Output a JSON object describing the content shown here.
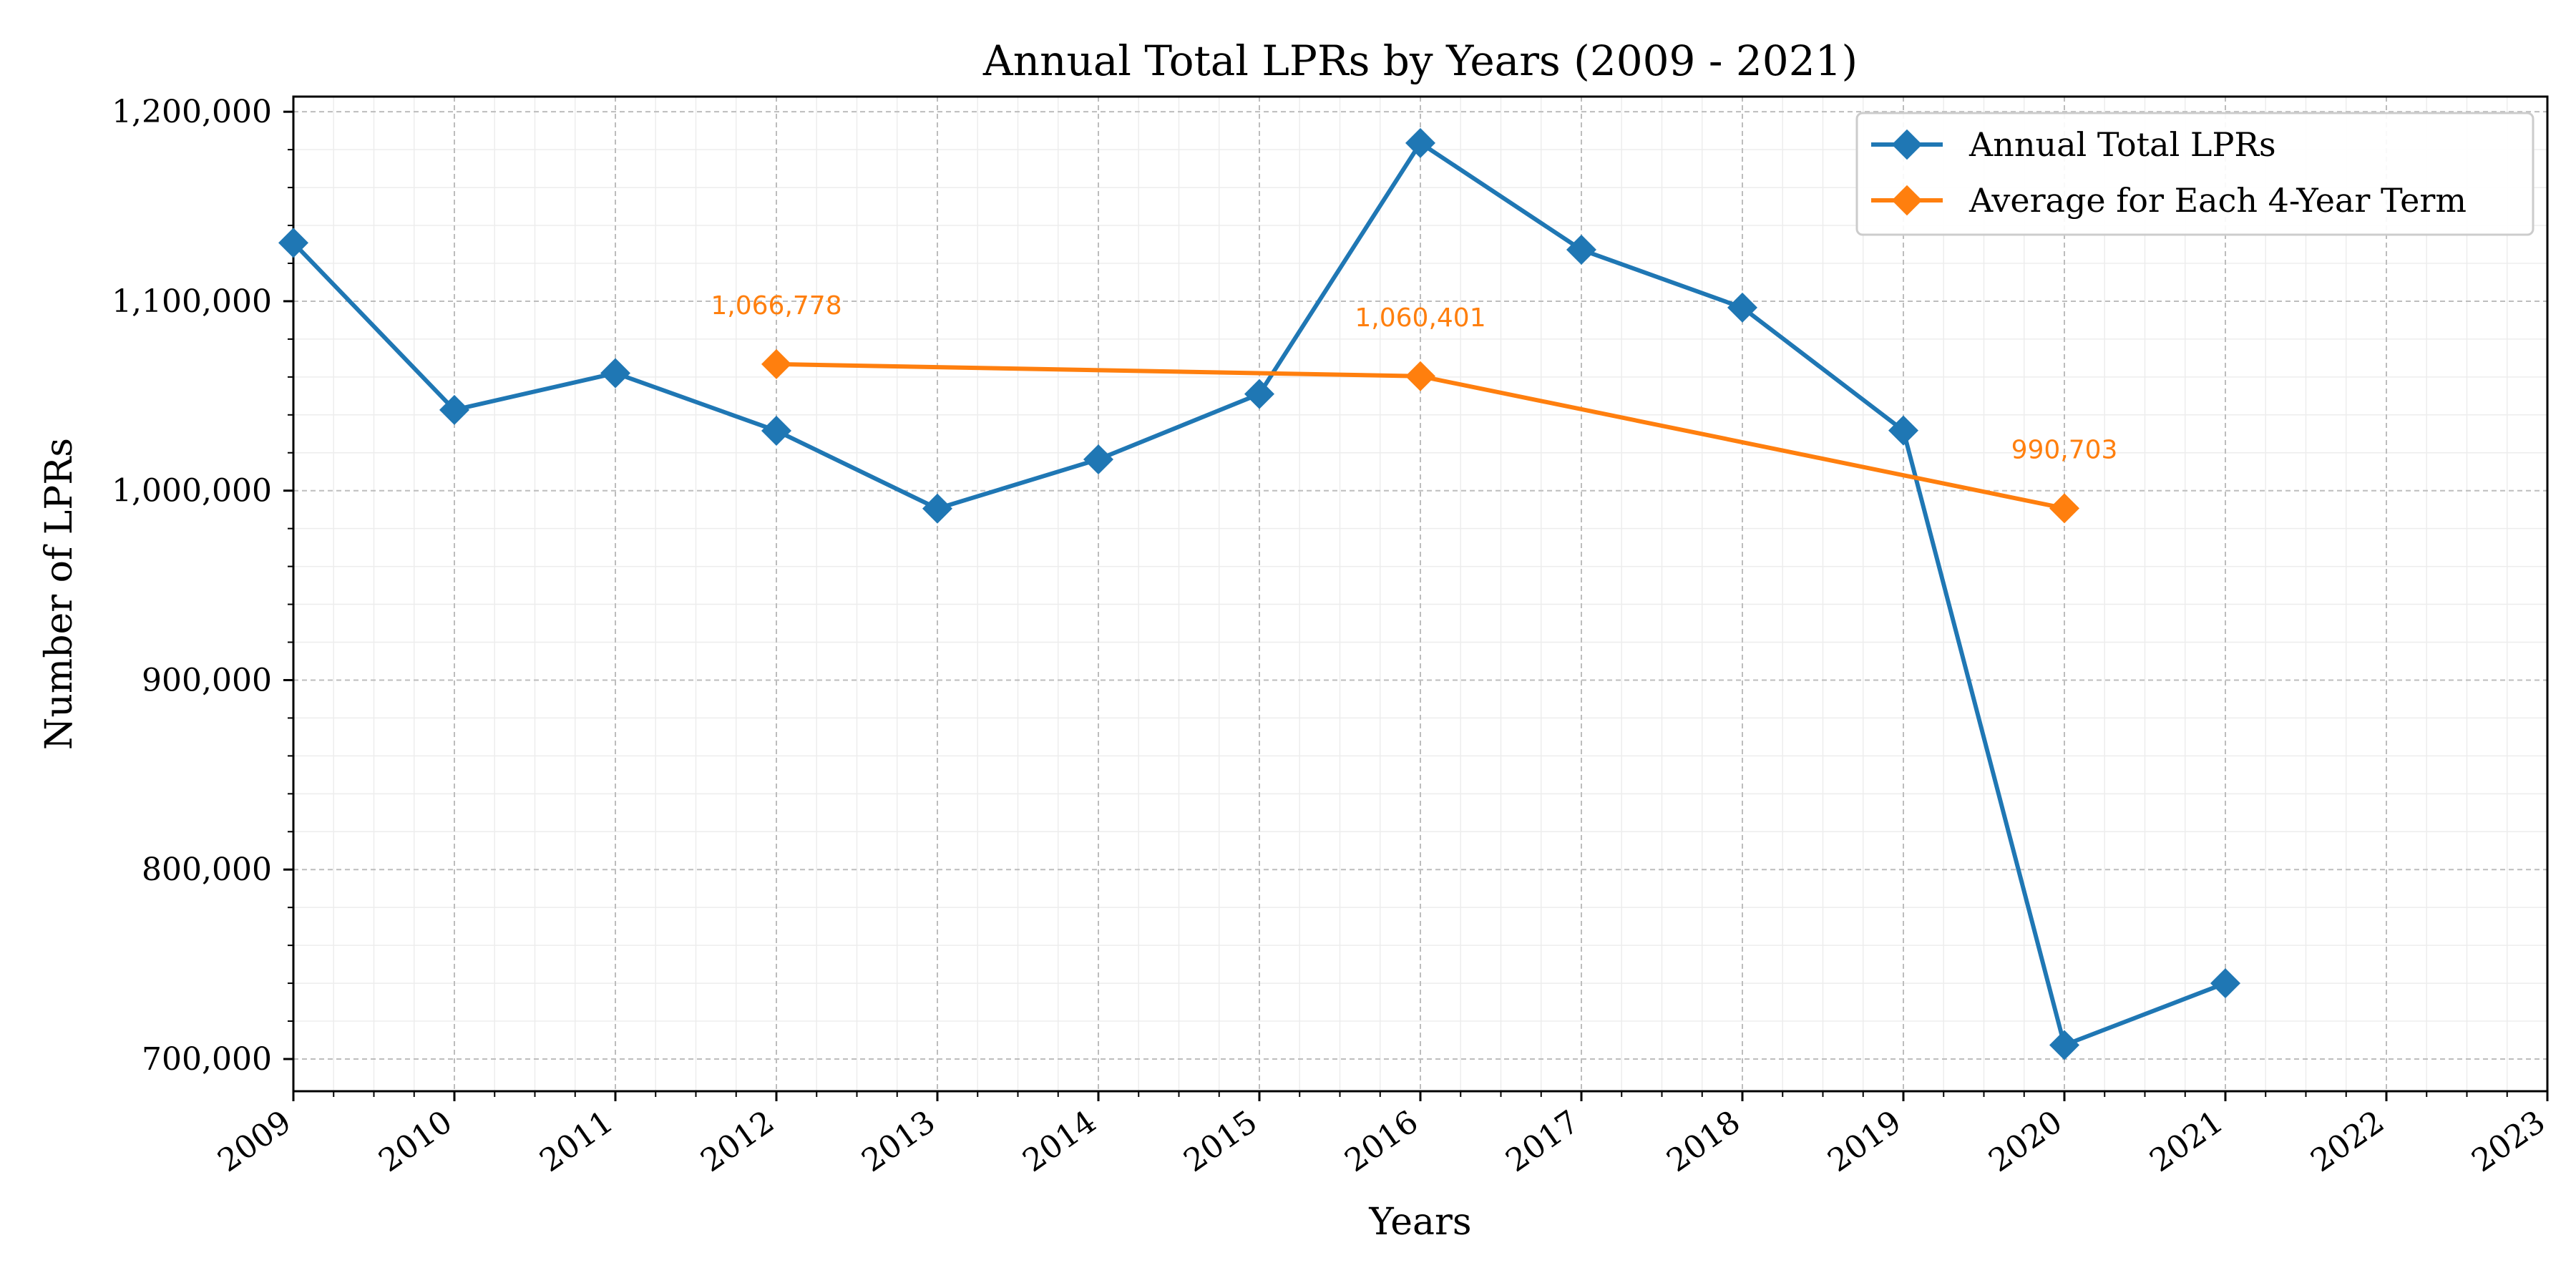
{
  "chart_data": {
    "type": "line",
    "title": "Annual Total LPRs by Years (2009 - 2021)",
    "xlabel": "Years",
    "ylabel": "Number of LPRs",
    "xlim": [
      2009,
      2023
    ],
    "ylim": [
      683000,
      1208000
    ],
    "x_ticks": [
      "2009",
      "2010",
      "2011",
      "2012",
      "2013",
      "2014",
      "2015",
      "2016",
      "2017",
      "2018",
      "2019",
      "2020",
      "2021",
      "2022",
      "2023"
    ],
    "y_ticks": [
      "700,000",
      "800,000",
      "900,000",
      "1,000,000",
      "1,100,000",
      "1,200,000"
    ],
    "grid": true,
    "legend_position": "top-right",
    "series": [
      {
        "name": "Annual Total LPRs",
        "color": "#1f77b4",
        "marker": "diamond",
        "x": [
          2009,
          2010,
          2011,
          2012,
          2013,
          2014,
          2015,
          2016,
          2017,
          2018,
          2019,
          2020,
          2021
        ],
        "y": [
          1130818,
          1042625,
          1062040,
          1031631,
          990553,
          1016518,
          1051031,
          1183505,
          1127167,
          1096611,
          1031765,
          707362,
          740002
        ]
      },
      {
        "name": "Average for Each 4-Year Term",
        "color": "#ff7f0e",
        "marker": "diamond",
        "x": [
          2012,
          2016,
          2020
        ],
        "y": [
          1066778,
          1060401,
          990703
        ],
        "labels": [
          "1,066,778",
          "1,060,401",
          "990,703"
        ]
      }
    ]
  }
}
